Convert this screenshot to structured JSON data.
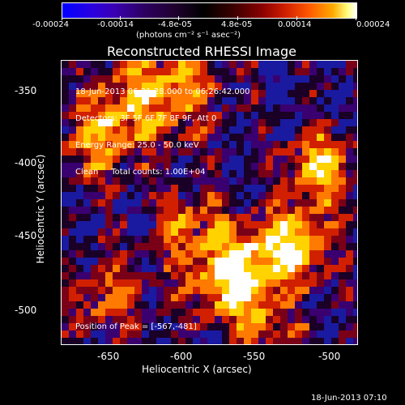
{
  "colorbar": {
    "ticks": [
      "-0.00024",
      "-0.00014",
      "-4.8e-05",
      "4.8e-05",
      "0.00014",
      "0.00024"
    ],
    "units": "(photons cm⁻² s⁻¹ asec⁻²)"
  },
  "title": "Reconstructed RHESSI Image",
  "info": {
    "time": "18-Jun-2013 06:21:28.000 to 06:26:42.000",
    "detectors": "Detectors: 3F 5F 6F 7F 8F 9F, Att 0",
    "energy": "Energy Range: 25.0 - 50.0 keV",
    "clean": "Clean     Total counts: 1.00E+04"
  },
  "peak": "Position of Peak = [-567,-481]",
  "axes": {
    "x_label": "Heliocentric X (arcsec)",
    "y_label": "Heliocentric Y (arcsec)",
    "x_ticks": [
      "-650",
      "-600",
      "-550",
      "-500"
    ],
    "y_ticks": [
      "-350",
      "-400",
      "-450",
      "-500"
    ]
  },
  "timestamp": "18-Jun-2013 07:10",
  "colors": {
    "bright": "#ffffff",
    "hot": "#ffd200",
    "mid": "#d12000",
    "low": "#3a0070",
    "negative": "#1a1aa0"
  }
}
